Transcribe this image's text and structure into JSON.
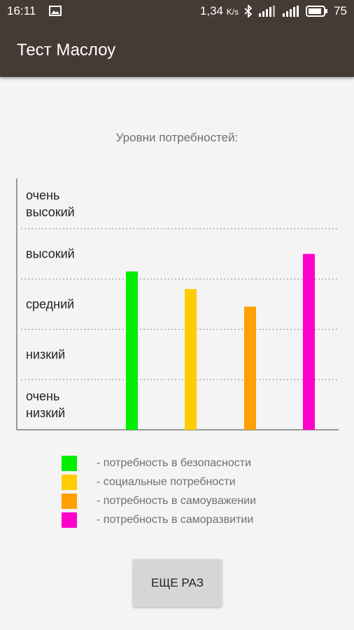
{
  "status_bar": {
    "time": "16:11",
    "speed": "1,34",
    "speed_unit": "K/s",
    "battery": "75"
  },
  "app_bar": {
    "title": "Тест Маслоу"
  },
  "chart_data": {
    "type": "bar",
    "title": "Уровни потребностей:",
    "y_levels": [
      "очень низкий",
      "низкий",
      "средний",
      "высокий",
      "очень высокий"
    ],
    "ylim": [
      0,
      5
    ],
    "grid": "dotted",
    "series": [
      {
        "name": "- потребность в безопасности",
        "value": 3.15,
        "color": "#00ee00"
      },
      {
        "name": "- социальные потребности",
        "value": 2.8,
        "color": "#ffcc00"
      },
      {
        "name": "- потребность в самоуважении",
        "value": 2.45,
        "color": "#ffa000"
      },
      {
        "name": "- потребность в саморазвитии",
        "value": 3.5,
        "color": "#ff00cc"
      }
    ]
  },
  "button": {
    "label": "ЕЩЕ РАЗ"
  }
}
